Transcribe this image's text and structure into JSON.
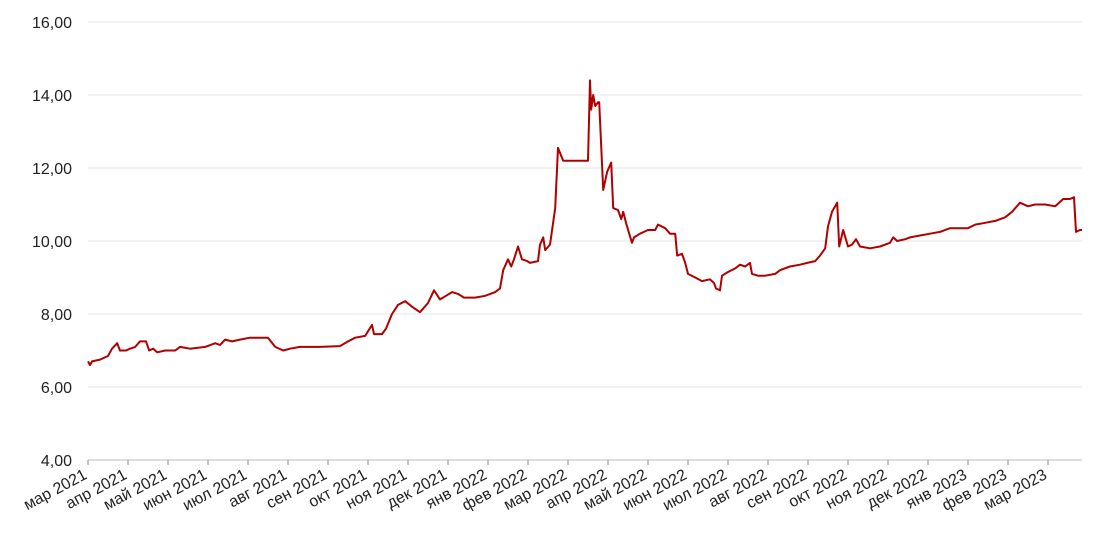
{
  "chart_data": {
    "type": "line",
    "x": [
      0,
      0.05,
      0.1,
      0.3,
      0.5,
      0.6,
      0.73,
      0.8,
      0.95,
      1.05,
      1.18,
      1.3,
      1.45,
      1.53,
      1.63,
      1.73,
      1.93,
      2.18,
      2.3,
      2.55,
      2.93,
      3.18,
      3.3,
      3.43,
      3.6,
      3.8,
      4.05,
      4.5,
      4.68,
      4.88,
      5.05,
      5.3,
      5.8,
      6.3,
      6.5,
      6.68,
      6.93,
      7.1,
      7.15,
      7.35,
      7.45,
      7.6,
      7.75,
      7.93,
      8.1,
      8.3,
      8.5,
      8.65,
      8.8,
      8.95,
      9.1,
      9.25,
      9.4,
      9.68,
      9.93,
      10.18,
      10.3,
      10.38,
      10.5,
      10.58,
      10.65,
      10.75,
      10.85,
      10.98,
      11.05,
      11.25,
      11.3,
      11.38,
      11.43,
      11.55,
      11.68,
      11.75,
      11.88,
      12.43,
      12.5,
      12.55,
      12.58,
      12.63,
      12.68,
      12.75,
      12.78,
      12.88,
      12.98,
      13.08,
      13.13,
      13.25,
      13.33,
      13.38,
      13.45,
      13.53,
      13.6,
      13.65,
      13.8,
      14.0,
      14.18,
      14.25,
      14.43,
      14.55,
      14.68,
      14.73,
      14.85,
      14.93,
      15.0,
      15.18,
      15.35,
      15.55,
      15.65,
      15.7,
      15.8,
      15.85,
      16.0,
      16.18,
      16.3,
      16.43,
      16.55,
      16.6,
      16.75,
      16.93,
      17.18,
      17.3,
      17.55,
      17.8,
      17.98,
      18.18,
      18.3,
      18.43,
      18.5,
      18.6,
      18.73,
      18.78,
      18.88,
      19.0,
      19.1,
      19.2,
      19.3,
      19.55,
      19.8,
      20.05,
      20.13,
      20.23,
      20.43,
      20.55,
      20.8,
      21.05,
      21.3,
      21.55,
      21.8,
      22.0,
      22.18,
      22.43,
      22.68,
      22.93,
      23.1,
      23.3,
      23.5,
      23.68,
      23.93,
      24.18,
      24.38,
      24.55,
      24.65,
      24.7,
      24.8,
      24.85
    ],
    "series": [
      {
        "color": "#b00000",
        "values": [
          6.7,
          6.6,
          6.7,
          6.75,
          6.85,
          7.05,
          7.2,
          7.0,
          7.0,
          7.05,
          7.1,
          7.25,
          7.25,
          7.0,
          7.05,
          6.95,
          7.0,
          7.0,
          7.1,
          7.05,
          7.1,
          7.2,
          7.15,
          7.3,
          7.25,
          7.3,
          7.35,
          7.35,
          7.1,
          7.0,
          7.05,
          7.1,
          7.1,
          7.12,
          7.25,
          7.35,
          7.4,
          7.7,
          7.45,
          7.45,
          7.6,
          8.0,
          8.25,
          8.35,
          8.2,
          8.05,
          8.3,
          8.65,
          8.4,
          8.5,
          8.6,
          8.55,
          8.45,
          8.45,
          8.5,
          8.6,
          8.7,
          9.2,
          9.5,
          9.3,
          9.5,
          9.85,
          9.5,
          9.45,
          9.4,
          9.45,
          9.9,
          10.1,
          9.75,
          9.9,
          10.9,
          12.55,
          12.2,
          12.2,
          12.2,
          14.4,
          13.6,
          14.0,
          13.7,
          13.8,
          13.8,
          11.4,
          11.9,
          12.15,
          10.9,
          10.85,
          10.6,
          10.8,
          10.5,
          10.2,
          9.95,
          10.1,
          10.2,
          10.3,
          10.3,
          10.45,
          10.35,
          10.2,
          10.2,
          9.6,
          9.65,
          9.4,
          9.1,
          9.0,
          8.9,
          8.95,
          8.85,
          8.7,
          8.65,
          9.05,
          9.15,
          9.25,
          9.35,
          9.3,
          9.4,
          9.1,
          9.05,
          9.05,
          9.1,
          9.2,
          9.3,
          9.35,
          9.4,
          9.45,
          9.6,
          9.8,
          10.4,
          10.8,
          11.05,
          9.85,
          10.3,
          9.85,
          9.9,
          10.05,
          9.85,
          9.8,
          9.85,
          9.95,
          10.1,
          10.0,
          10.05,
          10.1,
          10.15,
          10.2,
          10.25,
          10.35,
          10.35,
          10.35,
          10.45,
          10.5,
          10.55,
          10.65,
          10.8,
          11.05,
          10.95,
          11.0,
          11.0,
          10.95,
          11.15,
          11.15,
          11.2,
          10.25,
          10.3,
          10.3
        ]
      }
    ],
    "xlim": [
      0,
      24.85
    ],
    "xticks": [
      {
        "value": 0,
        "label": "мар 2021"
      },
      {
        "value": 1,
        "label": "апр 2021"
      },
      {
        "value": 2,
        "label": "май 2021"
      },
      {
        "value": 3,
        "label": "июн 2021"
      },
      {
        "value": 4,
        "label": "июл 2021"
      },
      {
        "value": 5,
        "label": "авг 2021"
      },
      {
        "value": 6,
        "label": "сен 2021"
      },
      {
        "value": 7,
        "label": "окт 2021"
      },
      {
        "value": 8,
        "label": "ноя 2021"
      },
      {
        "value": 9,
        "label": "дек 2021"
      },
      {
        "value": 10,
        "label": "янв 2022"
      },
      {
        "value": 11,
        "label": "фев 2022"
      },
      {
        "value": 12,
        "label": "мар 2022"
      },
      {
        "value": 13,
        "label": "апр 2022"
      },
      {
        "value": 14,
        "label": "май 2022"
      },
      {
        "value": 15,
        "label": "июн 2022"
      },
      {
        "value": 16,
        "label": "июл 2022"
      },
      {
        "value": 17,
        "label": "авг 2022"
      },
      {
        "value": 18,
        "label": "сен 2022"
      },
      {
        "value": 19,
        "label": "окт 2022"
      },
      {
        "value": 20,
        "label": "ноя 2022"
      },
      {
        "value": 21,
        "label": "дек 2022"
      },
      {
        "value": 22,
        "label": "янв 2023"
      },
      {
        "value": 23,
        "label": "фев 2023"
      },
      {
        "value": 24,
        "label": "мар 2023"
      }
    ],
    "ylim": [
      4,
      16
    ],
    "yticks": [
      {
        "value": 4,
        "label": "4,00"
      },
      {
        "value": 6,
        "label": "6,00"
      },
      {
        "value": 8,
        "label": "8,00"
      },
      {
        "value": 10,
        "label": "10,00"
      },
      {
        "value": 12,
        "label": "12,00"
      },
      {
        "value": 14,
        "label": "14,00"
      },
      {
        "value": 16,
        "label": "16,00"
      }
    ],
    "grid": true
  }
}
